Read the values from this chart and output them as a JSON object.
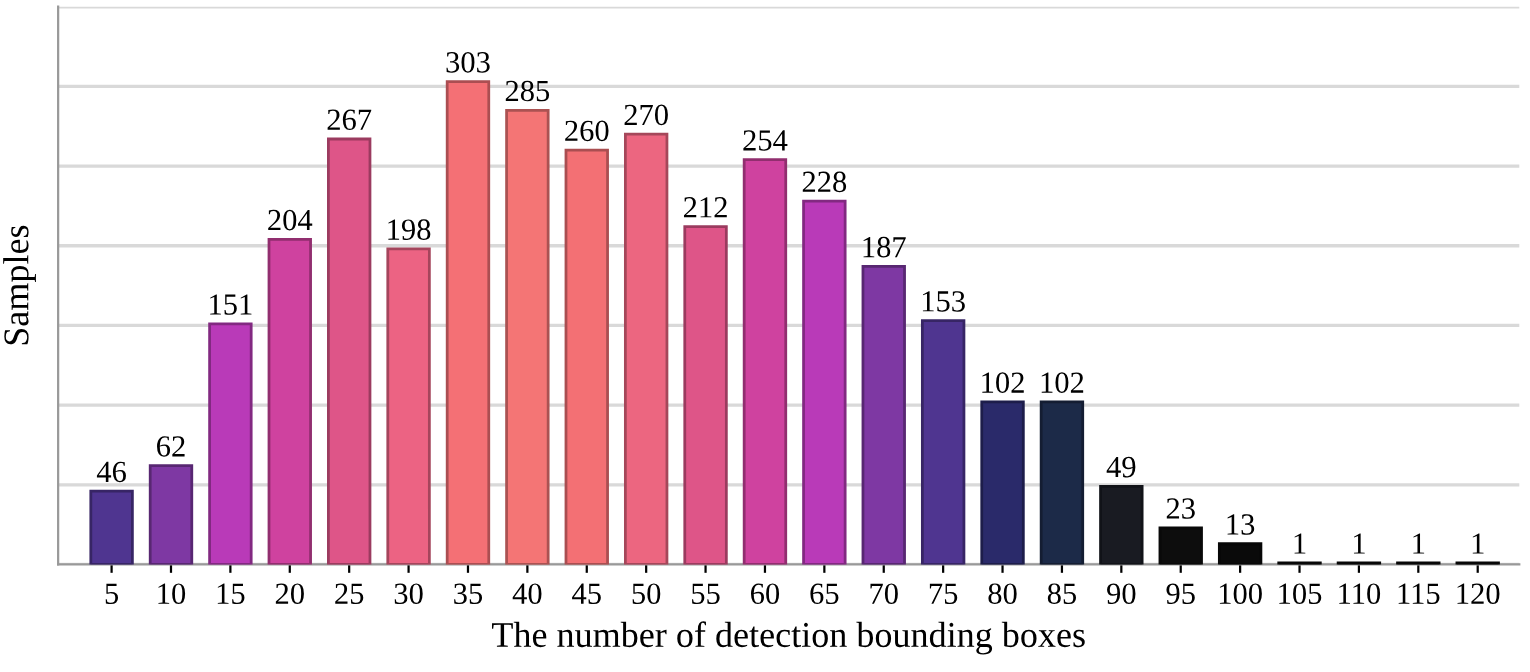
{
  "chart_data": {
    "type": "bar",
    "xlabel": "The number of detection bounding boxes",
    "ylabel": "Samples",
    "categories": [
      "5",
      "10",
      "15",
      "20",
      "25",
      "30",
      "35",
      "40",
      "45",
      "50",
      "55",
      "60",
      "65",
      "70",
      "75",
      "80",
      "85",
      "90",
      "95",
      "100",
      "105",
      "110",
      "115",
      "120"
    ],
    "values": [
      46,
      62,
      151,
      204,
      267,
      198,
      303,
      285,
      260,
      270,
      212,
      254,
      228,
      187,
      153,
      102,
      102,
      49,
      23,
      13,
      1,
      1,
      1,
      1
    ],
    "colors": [
      "#4f3590",
      "#7e38a3",
      "#b93ab8",
      "#cf429f",
      "#de5588",
      "#ec6383",
      "#f47075",
      "#f47575",
      "#f37074",
      "#ec6680",
      "#de5588",
      "#cf429f",
      "#b93ab8",
      "#7e38a3",
      "#4f3590",
      "#2a2a6a",
      "#1c2a48",
      "#191b22",
      "#0d0d0d",
      "#0a0a0a",
      "#0a0a0a",
      "#0a0a0a",
      "#0a0a0a",
      "#0a0a0a"
    ],
    "ylim": [
      0,
      350
    ],
    "yticks": [
      {
        "value": 0,
        "label": null
      },
      {
        "value": 50,
        "label": null
      },
      {
        "value": 100,
        "label": null
      },
      {
        "value": 150,
        "label": null
      },
      {
        "value": 200,
        "label": null
      },
      {
        "value": 250,
        "label": null
      },
      {
        "value": 300,
        "label": null
      },
      {
        "value": 350,
        "label": null
      }
    ],
    "tick_labels": "x",
    "grid": "y",
    "data_labels": true
  }
}
